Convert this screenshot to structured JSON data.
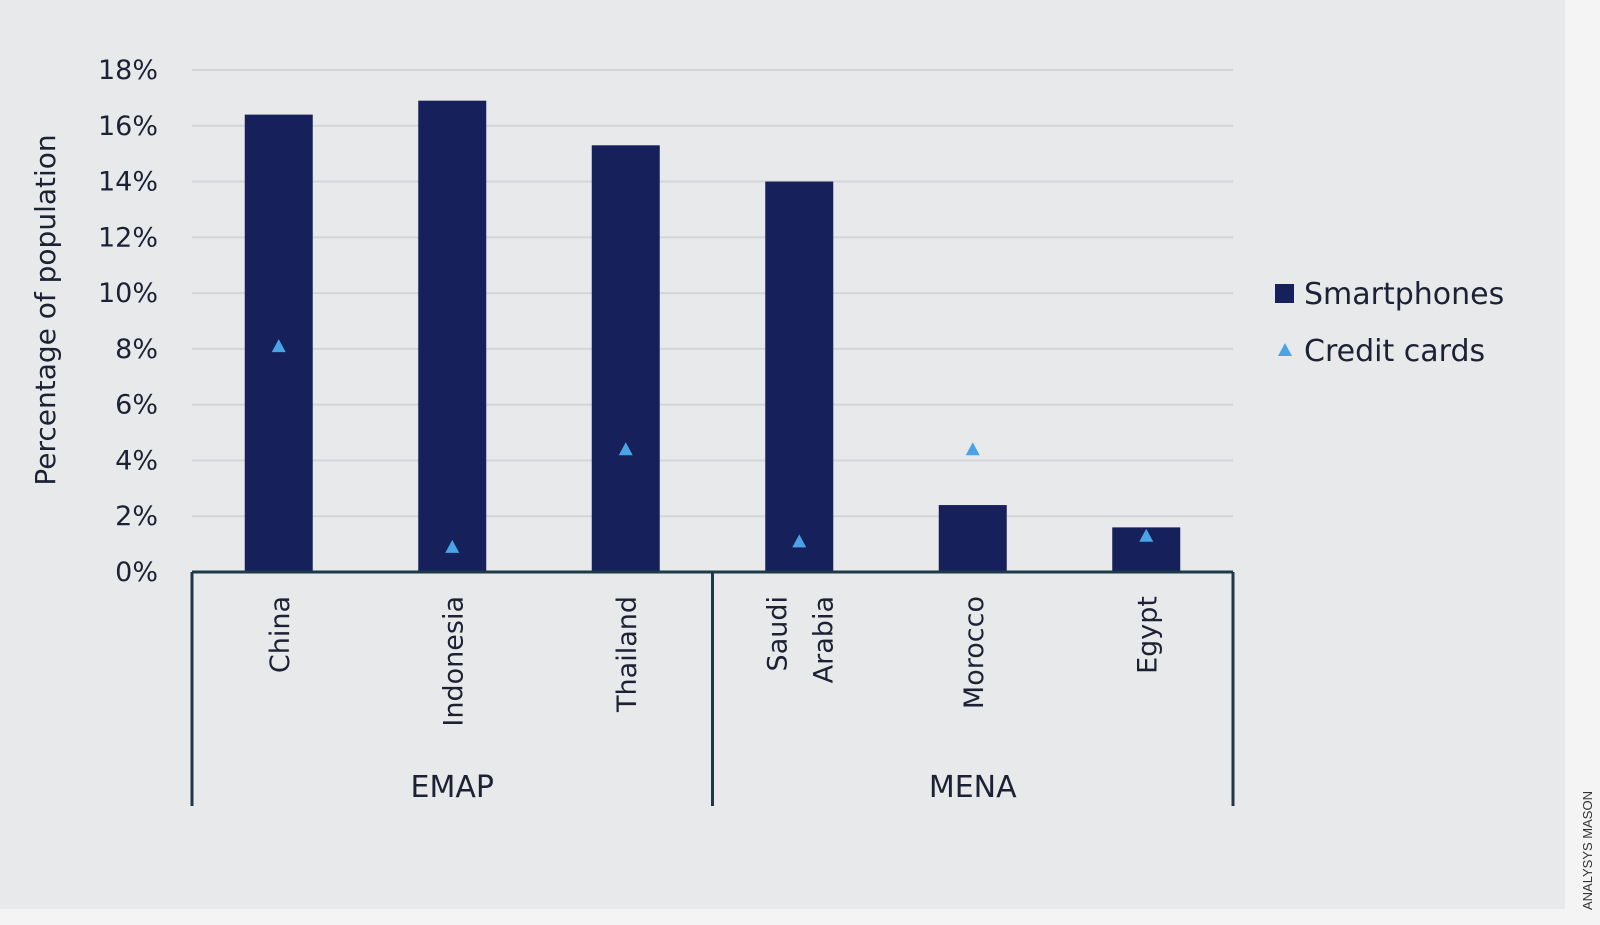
{
  "chart_data": {
    "type": "bar",
    "ylabel": "Percentage of population",
    "ylim": [
      0,
      18
    ],
    "yticks": [
      "0%",
      "2%",
      "4%",
      "6%",
      "8%",
      "10%",
      "12%",
      "14%",
      "16%",
      "18%"
    ],
    "categories": [
      "China",
      "Indonesia",
      "Thailand",
      "Saudi Arabia",
      "Morocco",
      "Egypt"
    ],
    "category_labels": [
      [
        "China"
      ],
      [
        "Indonesia"
      ],
      [
        "Thailand"
      ],
      [
        "Saudi",
        "Arabia"
      ],
      [
        "Morocco"
      ],
      [
        "Egypt"
      ]
    ],
    "groups": [
      {
        "label": "EMAP",
        "categories": [
          "China",
          "Indonesia",
          "Thailand"
        ]
      },
      {
        "label": "MENA",
        "categories": [
          "Saudi Arabia",
          "Morocco",
          "Egypt"
        ]
      }
    ],
    "series": [
      {
        "name": "Smartphones",
        "type": "bar",
        "color": "#16205a",
        "values": [
          16.4,
          16.9,
          15.3,
          14.0,
          2.4,
          1.6
        ]
      },
      {
        "name": "Credit cards",
        "type": "marker",
        "marker": "triangle",
        "color": "#4aa3e6",
        "values": [
          8.1,
          0.9,
          4.4,
          1.1,
          4.4,
          1.3
        ]
      }
    ],
    "grid": true,
    "legend_position": "right"
  },
  "credit": "ANALYSYS MASON"
}
